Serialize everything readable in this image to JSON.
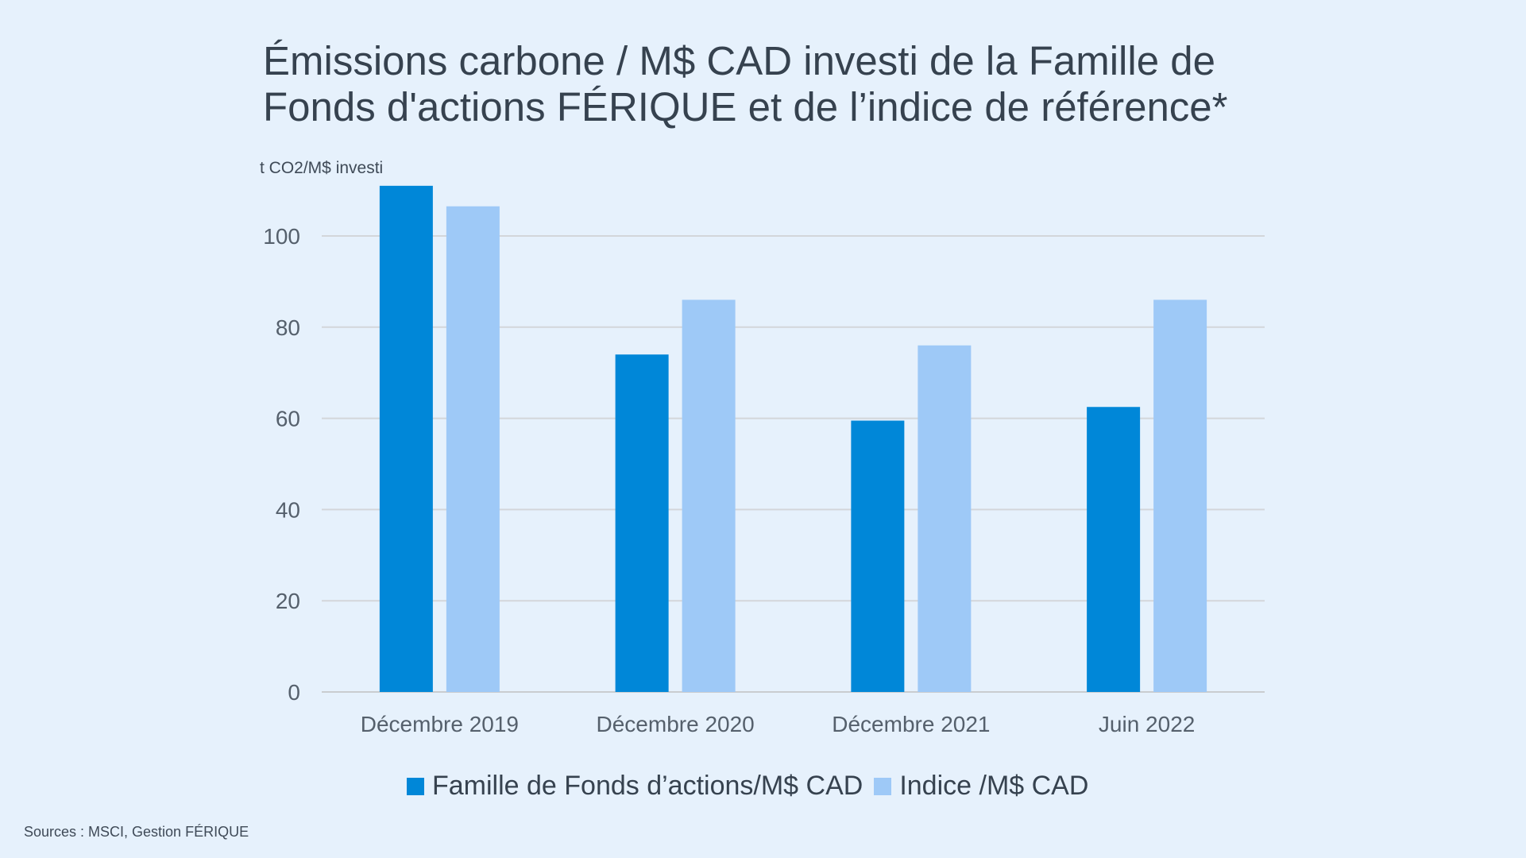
{
  "title_lines": [
    "Émissions carbone / M$ CAD investi de la Famille de",
    "Fonds d'actions FÉRIQUE et de l’indice de référence*"
  ],
  "source_note": "Sources : MSCI, Gestion FÉRIQUE",
  "chart_data": {
    "type": "bar",
    "title": "Émissions carbone / M$ CAD investi de la Famille de Fonds d'actions FÉRIQUE et de l’indice de référence*",
    "ylabel": "t CO2/M$ investi",
    "xlabel": "",
    "ylim": [
      0,
      110
    ],
    "yticks": [
      0,
      20,
      40,
      60,
      80,
      100
    ],
    "grid": true,
    "legend_position": "bottom",
    "categories": [
      "Décembre 2019",
      "Décembre 2020",
      "Décembre 2021",
      "Juin 2022"
    ],
    "series": [
      {
        "name": "Famille de Fonds d’actions/M$ CAD",
        "color": "#0087d8",
        "values": [
          111,
          74,
          59.5,
          62.5
        ]
      },
      {
        "name": "Indice /M$ CAD",
        "color": "#9ec9f7",
        "values": [
          106.5,
          86,
          76,
          86
        ]
      }
    ]
  }
}
